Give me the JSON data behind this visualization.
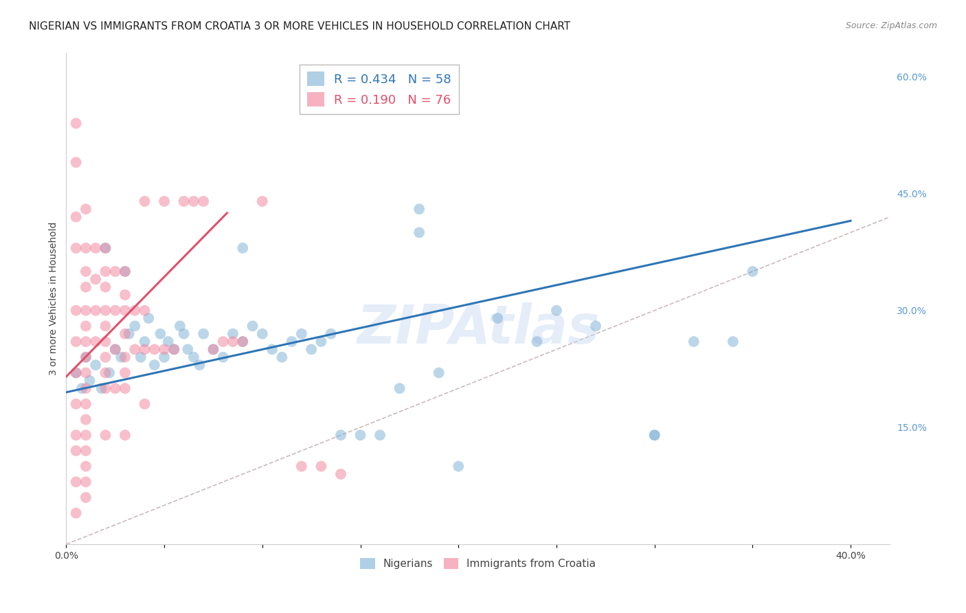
{
  "title": "NIGERIAN VS IMMIGRANTS FROM CROATIA 3 OR MORE VEHICLES IN HOUSEHOLD CORRELATION CHART",
  "source": "Source: ZipAtlas.com",
  "ylabel": "3 or more Vehicles in Household",
  "xlim": [
    0.0,
    0.42
  ],
  "ylim": [
    0.0,
    0.63
  ],
  "xtick_positions": [
    0.0,
    0.05,
    0.1,
    0.15,
    0.2,
    0.25,
    0.3,
    0.35,
    0.4
  ],
  "xticklabels": [
    "0.0%",
    "",
    "",
    "",
    "",
    "",
    "",
    "",
    "40.0%"
  ],
  "yticks_right": [
    0.0,
    0.15,
    0.3,
    0.45,
    0.6
  ],
  "yticklabels_right": [
    "",
    "15.0%",
    "30.0%",
    "45.0%",
    "60.0%"
  ],
  "legend_labels_bottom": [
    "Nigerians",
    "Immigrants from Croatia"
  ],
  "blue_color": "#7bafd4",
  "pink_color": "#f08098",
  "blue_trend_x": [
    0.0,
    0.4
  ],
  "blue_trend_y": [
    0.195,
    0.415
  ],
  "pink_trend_x": [
    0.0,
    0.082
  ],
  "pink_trend_y": [
    0.215,
    0.425
  ],
  "ref_line_x": [
    0.0,
    0.63
  ],
  "ref_line_y": [
    0.0,
    0.63
  ],
  "watermark": "ZIPAtlas",
  "background_color": "#ffffff",
  "grid_color": "#cccccc",
  "title_fontsize": 11,
  "axis_label_fontsize": 10,
  "tick_fontsize": 10,
  "right_tick_color": "#5b9bd5",
  "blue_scatter_x": [
    0.005,
    0.008,
    0.01,
    0.012,
    0.015,
    0.018,
    0.02,
    0.022,
    0.025,
    0.028,
    0.03,
    0.032,
    0.035,
    0.038,
    0.04,
    0.042,
    0.045,
    0.048,
    0.05,
    0.052,
    0.055,
    0.058,
    0.06,
    0.062,
    0.065,
    0.068,
    0.07,
    0.075,
    0.08,
    0.085,
    0.09,
    0.095,
    0.1,
    0.105,
    0.11,
    0.115,
    0.12,
    0.125,
    0.13,
    0.135,
    0.14,
    0.15,
    0.16,
    0.17,
    0.18,
    0.19,
    0.2,
    0.22,
    0.24,
    0.25,
    0.27,
    0.3,
    0.3,
    0.32,
    0.34,
    0.35,
    0.18,
    0.09
  ],
  "blue_scatter_y": [
    0.22,
    0.2,
    0.24,
    0.21,
    0.23,
    0.2,
    0.38,
    0.22,
    0.25,
    0.24,
    0.35,
    0.27,
    0.28,
    0.24,
    0.26,
    0.29,
    0.23,
    0.27,
    0.24,
    0.26,
    0.25,
    0.28,
    0.27,
    0.25,
    0.24,
    0.23,
    0.27,
    0.25,
    0.24,
    0.27,
    0.26,
    0.28,
    0.27,
    0.25,
    0.24,
    0.26,
    0.27,
    0.25,
    0.26,
    0.27,
    0.14,
    0.14,
    0.14,
    0.2,
    0.4,
    0.22,
    0.1,
    0.29,
    0.26,
    0.3,
    0.28,
    0.14,
    0.14,
    0.26,
    0.26,
    0.35,
    0.43,
    0.38
  ],
  "pink_scatter_x": [
    0.005,
    0.005,
    0.005,
    0.005,
    0.005,
    0.005,
    0.005,
    0.005,
    0.005,
    0.01,
    0.01,
    0.01,
    0.01,
    0.01,
    0.01,
    0.01,
    0.01,
    0.01,
    0.01,
    0.01,
    0.01,
    0.01,
    0.01,
    0.01,
    0.01,
    0.01,
    0.015,
    0.015,
    0.015,
    0.015,
    0.02,
    0.02,
    0.02,
    0.02,
    0.02,
    0.02,
    0.02,
    0.02,
    0.02,
    0.02,
    0.025,
    0.025,
    0.025,
    0.025,
    0.03,
    0.03,
    0.03,
    0.03,
    0.03,
    0.03,
    0.03,
    0.03,
    0.035,
    0.035,
    0.04,
    0.04,
    0.04,
    0.04,
    0.045,
    0.05,
    0.05,
    0.055,
    0.06,
    0.065,
    0.07,
    0.075,
    0.08,
    0.085,
    0.09,
    0.1,
    0.12,
    0.13,
    0.14,
    0.005,
    0.005,
    0.005
  ],
  "pink_scatter_y": [
    0.54,
    0.49,
    0.42,
    0.38,
    0.3,
    0.26,
    0.22,
    0.14,
    0.08,
    0.43,
    0.38,
    0.35,
    0.33,
    0.3,
    0.28,
    0.26,
    0.24,
    0.22,
    0.2,
    0.18,
    0.16,
    0.14,
    0.12,
    0.1,
    0.08,
    0.06,
    0.38,
    0.34,
    0.3,
    0.26,
    0.38,
    0.35,
    0.33,
    0.3,
    0.28,
    0.26,
    0.24,
    0.22,
    0.2,
    0.14,
    0.35,
    0.3,
    0.25,
    0.2,
    0.35,
    0.32,
    0.3,
    0.27,
    0.24,
    0.22,
    0.2,
    0.14,
    0.3,
    0.25,
    0.44,
    0.3,
    0.25,
    0.18,
    0.25,
    0.44,
    0.25,
    0.25,
    0.44,
    0.44,
    0.44,
    0.25,
    0.26,
    0.26,
    0.26,
    0.44,
    0.1,
    0.1,
    0.09,
    0.18,
    0.12,
    0.04
  ]
}
